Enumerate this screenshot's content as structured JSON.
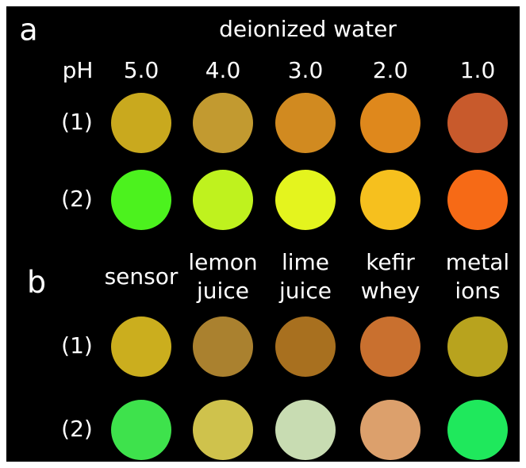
{
  "panel_a": {
    "label": "a",
    "title": "deionized water",
    "row_header": "pH",
    "columns": [
      "5.0",
      "4.0",
      "3.0",
      "2.0",
      "1.0"
    ],
    "rows": [
      "(1)",
      "(2)"
    ]
  },
  "panel_b": {
    "label": "b",
    "columns": [
      [
        "sensor"
      ],
      [
        "lemon",
        "juice"
      ],
      [
        "lime",
        "juice"
      ],
      [
        "kefir",
        "whey"
      ],
      [
        "metal",
        "ions"
      ]
    ],
    "rows": [
      "(1)",
      "(2)"
    ]
  }
}
